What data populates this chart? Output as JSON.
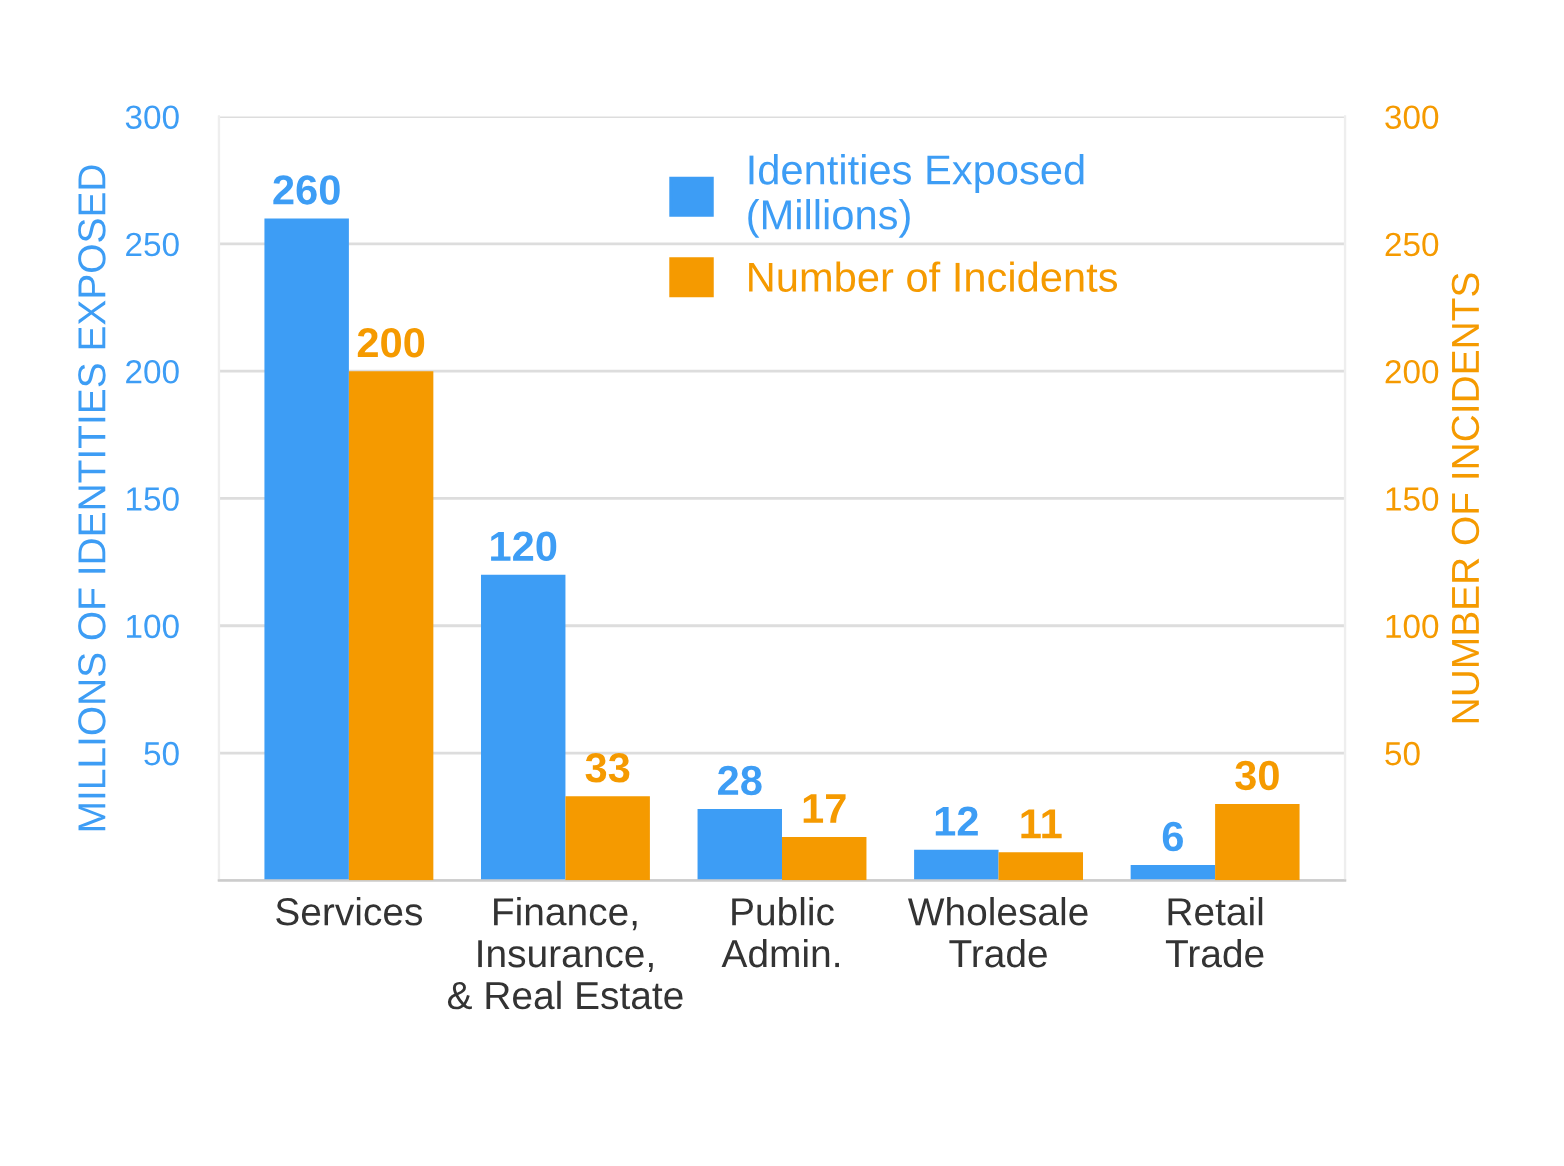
{
  "chart_data": {
    "type": "bar",
    "categories": [
      "Services",
      "Finance,\nInsurance,\n& Real Estate",
      "Public\nAdmin.",
      "Wholesale\nTrade",
      "Retail\nTrade"
    ],
    "series": [
      {
        "name": "Identities Exposed\n(Millions)",
        "color": "#3d9df5",
        "values": [
          260,
          120,
          28,
          12,
          6
        ]
      },
      {
        "name": "Number of Incidents",
        "color": "#f59a00",
        "values": [
          200,
          33,
          17,
          11,
          30
        ],
        "axis": "y2"
      }
    ],
    "ylabel": "MILLIONS OF IDENTITIES EXPOSED",
    "y2label": "NUMBER OF INCIDENTS",
    "ylim": [
      0,
      300
    ],
    "yticks": [
      50,
      100,
      150,
      200,
      250,
      300
    ],
    "y2lim": [
      0,
      300
    ],
    "y2ticks": [
      50,
      100,
      150,
      200,
      250,
      300
    ],
    "grid": "y",
    "legend": "top",
    "data_labels": true
  }
}
